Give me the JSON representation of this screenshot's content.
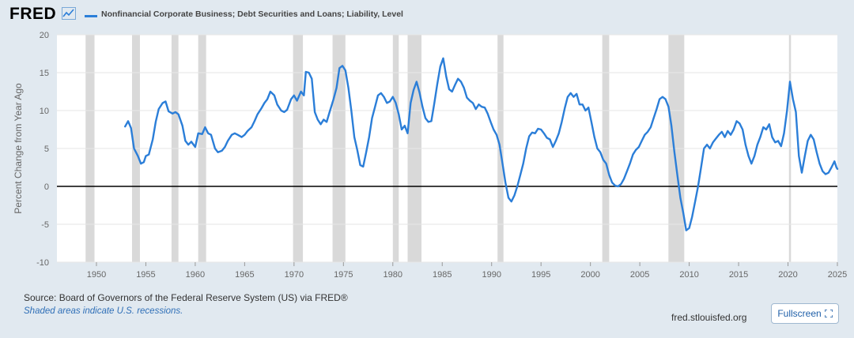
{
  "brand": {
    "logo_text": "FRED",
    "logo_icon": "line-chart-icon"
  },
  "chart_data": {
    "type": "line",
    "title": "",
    "ylabel": "Percent Change from Year Ago",
    "xlabel": "",
    "xlim": [
      1946.0,
      2025.0
    ],
    "ylim": [
      -10,
      20
    ],
    "y_ticks": [
      20,
      15,
      10,
      5,
      0,
      -5,
      -10
    ],
    "x_ticks": [
      1950,
      1955,
      1960,
      1965,
      1970,
      1975,
      1980,
      1985,
      1990,
      1995,
      2000,
      2005,
      2010,
      2015,
      2020,
      2025
    ],
    "grid": true,
    "legend_position": "top-left",
    "series": [
      {
        "name": "Nonfinancial Corporate Business; Debt Securities and Loans; Liability, Level",
        "color": "#2b7ed8",
        "points": [
          [
            1952.9,
            7.9
          ],
          [
            1953.2,
            8.6
          ],
          [
            1953.5,
            7.7
          ],
          [
            1953.8,
            5.0
          ],
          [
            1954.2,
            4.0
          ],
          [
            1954.5,
            3.0
          ],
          [
            1954.8,
            3.2
          ],
          [
            1955.0,
            4.0
          ],
          [
            1955.3,
            4.2
          ],
          [
            1955.7,
            6.2
          ],
          [
            1956.0,
            8.5
          ],
          [
            1956.3,
            10.2
          ],
          [
            1956.7,
            11.0
          ],
          [
            1957.0,
            11.2
          ],
          [
            1957.3,
            9.9
          ],
          [
            1957.7,
            9.6
          ],
          [
            1958.0,
            9.8
          ],
          [
            1958.3,
            9.5
          ],
          [
            1958.7,
            8.0
          ],
          [
            1959.0,
            6.0
          ],
          [
            1959.3,
            5.5
          ],
          [
            1959.6,
            5.9
          ],
          [
            1960.0,
            5.2
          ],
          [
            1960.3,
            7.0
          ],
          [
            1960.7,
            6.9
          ],
          [
            1961.0,
            7.8
          ],
          [
            1961.3,
            7.0
          ],
          [
            1961.6,
            6.8
          ],
          [
            1962.0,
            5.0
          ],
          [
            1962.3,
            4.5
          ],
          [
            1962.7,
            4.7
          ],
          [
            1963.0,
            5.2
          ],
          [
            1963.3,
            6.0
          ],
          [
            1963.7,
            6.8
          ],
          [
            1964.0,
            7.0
          ],
          [
            1964.3,
            6.8
          ],
          [
            1964.7,
            6.5
          ],
          [
            1965.0,
            6.8
          ],
          [
            1965.3,
            7.3
          ],
          [
            1965.7,
            7.8
          ],
          [
            1966.0,
            8.6
          ],
          [
            1966.3,
            9.5
          ],
          [
            1966.7,
            10.3
          ],
          [
            1967.0,
            11.0
          ],
          [
            1967.3,
            11.5
          ],
          [
            1967.6,
            12.5
          ],
          [
            1968.0,
            12.0
          ],
          [
            1968.3,
            10.8
          ],
          [
            1968.7,
            10.0
          ],
          [
            1969.0,
            9.8
          ],
          [
            1969.3,
            10.1
          ],
          [
            1969.7,
            11.5
          ],
          [
            1970.0,
            12.0
          ],
          [
            1970.3,
            11.3
          ],
          [
            1970.7,
            12.5
          ],
          [
            1971.0,
            12.0
          ],
          [
            1971.2,
            15.1
          ],
          [
            1971.5,
            15.0
          ],
          [
            1971.8,
            14.2
          ],
          [
            1972.1,
            9.8
          ],
          [
            1972.4,
            8.8
          ],
          [
            1972.7,
            8.2
          ],
          [
            1973.0,
            8.8
          ],
          [
            1973.3,
            8.5
          ],
          [
            1973.6,
            9.8
          ],
          [
            1974.0,
            11.5
          ],
          [
            1974.3,
            13.0
          ],
          [
            1974.6,
            15.6
          ],
          [
            1974.9,
            15.9
          ],
          [
            1975.2,
            15.3
          ],
          [
            1975.5,
            13.0
          ],
          [
            1975.8,
            10.0
          ],
          [
            1976.1,
            6.5
          ],
          [
            1976.4,
            4.8
          ],
          [
            1976.7,
            2.8
          ],
          [
            1977.0,
            2.6
          ],
          [
            1977.3,
            4.5
          ],
          [
            1977.6,
            6.5
          ],
          [
            1977.9,
            9.0
          ],
          [
            1978.2,
            10.5
          ],
          [
            1978.5,
            12.0
          ],
          [
            1978.8,
            12.3
          ],
          [
            1979.1,
            11.8
          ],
          [
            1979.4,
            11.0
          ],
          [
            1979.7,
            11.2
          ],
          [
            1980.0,
            11.8
          ],
          [
            1980.3,
            11.0
          ],
          [
            1980.6,
            9.5
          ],
          [
            1980.9,
            7.5
          ],
          [
            1981.2,
            8.0
          ],
          [
            1981.5,
            7.0
          ],
          [
            1981.8,
            11.0
          ],
          [
            1982.1,
            12.7
          ],
          [
            1982.4,
            13.8
          ],
          [
            1982.7,
            12.4
          ],
          [
            1983.0,
            10.5
          ],
          [
            1983.3,
            9.0
          ],
          [
            1983.6,
            8.5
          ],
          [
            1983.9,
            8.6
          ],
          [
            1984.2,
            11.0
          ],
          [
            1984.5,
            13.5
          ],
          [
            1984.8,
            15.8
          ],
          [
            1985.1,
            16.9
          ],
          [
            1985.4,
            14.5
          ],
          [
            1985.7,
            12.8
          ],
          [
            1986.0,
            12.5
          ],
          [
            1986.3,
            13.4
          ],
          [
            1986.6,
            14.2
          ],
          [
            1986.9,
            13.8
          ],
          [
            1987.2,
            13.0
          ],
          [
            1987.5,
            11.7
          ],
          [
            1987.8,
            11.3
          ],
          [
            1988.1,
            11.0
          ],
          [
            1988.4,
            10.2
          ],
          [
            1988.7,
            10.8
          ],
          [
            1989.0,
            10.5
          ],
          [
            1989.3,
            10.4
          ],
          [
            1989.6,
            9.6
          ],
          [
            1989.9,
            8.5
          ],
          [
            1990.2,
            7.5
          ],
          [
            1990.5,
            6.8
          ],
          [
            1990.8,
            5.5
          ],
          [
            1991.1,
            3.0
          ],
          [
            1991.4,
            0.5
          ],
          [
            1991.7,
            -1.5
          ],
          [
            1992.0,
            -2.0
          ],
          [
            1992.3,
            -1.2
          ],
          [
            1992.6,
            0.0
          ],
          [
            1992.9,
            1.5
          ],
          [
            1993.2,
            3.0
          ],
          [
            1993.5,
            5.0
          ],
          [
            1993.8,
            6.6
          ],
          [
            1994.1,
            7.1
          ],
          [
            1994.4,
            7.0
          ],
          [
            1994.7,
            7.6
          ],
          [
            1995.0,
            7.5
          ],
          [
            1995.3,
            7.0
          ],
          [
            1995.6,
            6.4
          ],
          [
            1995.9,
            6.2
          ],
          [
            1996.2,
            5.2
          ],
          [
            1996.5,
            6.0
          ],
          [
            1996.8,
            7.0
          ],
          [
            1997.1,
            8.5
          ],
          [
            1997.4,
            10.3
          ],
          [
            1997.7,
            11.8
          ],
          [
            1998.0,
            12.3
          ],
          [
            1998.3,
            11.8
          ],
          [
            1998.6,
            12.2
          ],
          [
            1998.9,
            10.8
          ],
          [
            1999.2,
            10.8
          ],
          [
            1999.5,
            10.0
          ],
          [
            1999.8,
            10.4
          ],
          [
            2000.1,
            8.5
          ],
          [
            2000.4,
            6.5
          ],
          [
            2000.7,
            5.0
          ],
          [
            2001.0,
            4.5
          ],
          [
            2001.3,
            3.5
          ],
          [
            2001.6,
            3.0
          ],
          [
            2001.9,
            1.5
          ],
          [
            2002.2,
            0.5
          ],
          [
            2002.5,
            0.1
          ],
          [
            2002.8,
            0.0
          ],
          [
            2003.1,
            0.3
          ],
          [
            2003.4,
            1.0
          ],
          [
            2003.7,
            2.0
          ],
          [
            2004.0,
            3.0
          ],
          [
            2004.3,
            4.2
          ],
          [
            2004.6,
            4.8
          ],
          [
            2004.9,
            5.2
          ],
          [
            2005.2,
            6.0
          ],
          [
            2005.5,
            6.8
          ],
          [
            2005.8,
            7.2
          ],
          [
            2006.1,
            7.8
          ],
          [
            2006.4,
            9.0
          ],
          [
            2006.7,
            10.2
          ],
          [
            2007.0,
            11.5
          ],
          [
            2007.3,
            11.8
          ],
          [
            2007.6,
            11.5
          ],
          [
            2007.9,
            10.5
          ],
          [
            2008.2,
            8.0
          ],
          [
            2008.5,
            4.5
          ],
          [
            2008.8,
            1.5
          ],
          [
            2009.1,
            -1.5
          ],
          [
            2009.4,
            -3.5
          ],
          [
            2009.7,
            -5.8
          ],
          [
            2010.0,
            -5.5
          ],
          [
            2010.3,
            -4.0
          ],
          [
            2010.6,
            -2.0
          ],
          [
            2010.9,
            0.0
          ],
          [
            2011.2,
            2.5
          ],
          [
            2011.5,
            5.0
          ],
          [
            2011.8,
            5.5
          ],
          [
            2012.1,
            5.0
          ],
          [
            2012.4,
            5.8
          ],
          [
            2012.7,
            6.3
          ],
          [
            2013.0,
            6.8
          ],
          [
            2013.3,
            7.2
          ],
          [
            2013.6,
            6.5
          ],
          [
            2013.9,
            7.3
          ],
          [
            2014.2,
            6.8
          ],
          [
            2014.5,
            7.5
          ],
          [
            2014.8,
            8.6
          ],
          [
            2015.1,
            8.3
          ],
          [
            2015.4,
            7.5
          ],
          [
            2015.7,
            5.5
          ],
          [
            2016.0,
            4.0
          ],
          [
            2016.3,
            3.0
          ],
          [
            2016.6,
            4.0
          ],
          [
            2016.9,
            5.5
          ],
          [
            2017.2,
            6.5
          ],
          [
            2017.5,
            7.8
          ],
          [
            2017.8,
            7.5
          ],
          [
            2018.1,
            8.2
          ],
          [
            2018.4,
            6.5
          ],
          [
            2018.7,
            5.8
          ],
          [
            2019.0,
            6.0
          ],
          [
            2019.3,
            5.3
          ],
          [
            2019.6,
            7.0
          ],
          [
            2019.9,
            10.0
          ],
          [
            2020.2,
            13.8
          ],
          [
            2020.5,
            11.5
          ],
          [
            2020.8,
            9.8
          ],
          [
            2021.1,
            4.0
          ],
          [
            2021.4,
            1.8
          ],
          [
            2021.7,
            4.0
          ],
          [
            2022.0,
            6.0
          ],
          [
            2022.3,
            6.8
          ],
          [
            2022.6,
            6.2
          ],
          [
            2022.9,
            4.5
          ],
          [
            2023.2,
            3.0
          ],
          [
            2023.5,
            2.0
          ],
          [
            2023.8,
            1.6
          ],
          [
            2024.1,
            1.8
          ],
          [
            2024.4,
            2.5
          ],
          [
            2024.7,
            3.3
          ],
          [
            2024.9,
            2.5
          ],
          [
            2025.0,
            2.3
          ]
        ]
      }
    ],
    "recessions": [
      [
        1948.9,
        1949.8
      ],
      [
        1953.6,
        1954.4
      ],
      [
        1957.6,
        1958.3
      ],
      [
        1960.3,
        1961.1
      ],
      [
        1969.9,
        1970.9
      ],
      [
        1973.9,
        1975.2
      ],
      [
        1980.0,
        1980.6
      ],
      [
        1981.5,
        1982.9
      ],
      [
        1990.6,
        1991.2
      ],
      [
        2001.2,
        2001.9
      ],
      [
        2007.9,
        2009.5
      ],
      [
        2020.1,
        2020.3
      ]
    ],
    "recession_color": "#d9d9d9",
    "zero_line_color": "#000000"
  },
  "footer": {
    "source": "Source: Board of Governors of the Federal Reserve System (US) via FRED®",
    "recession_note": "Shaded areas indicate U.S. recessions.",
    "site": "fred.stlouisfed.org",
    "fullscreen_label": "Fullscreen"
  }
}
